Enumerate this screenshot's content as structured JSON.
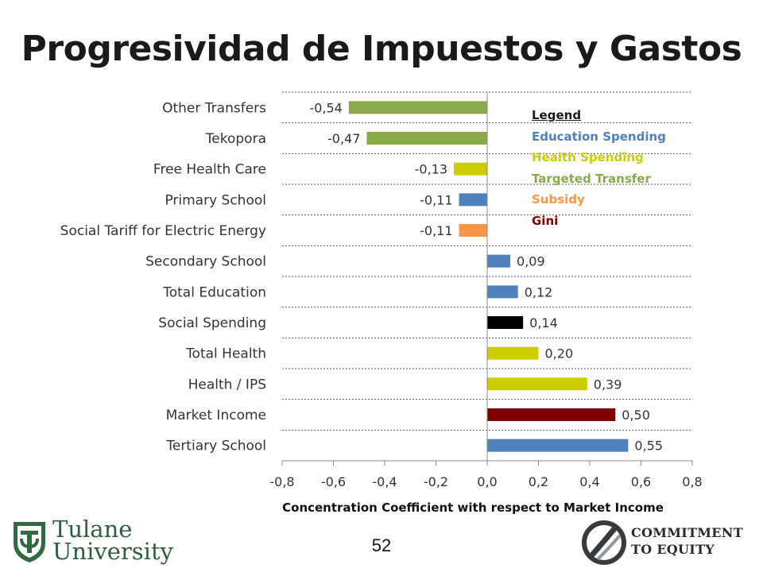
{
  "title": "Progresividad de Impuestos y Gastos",
  "page_number": "52",
  "legend": {
    "header": "Legend",
    "items": [
      {
        "label": "Education Spending",
        "color": "#4f81bd"
      },
      {
        "label": "Health Spending",
        "color": "#cccc00"
      },
      {
        "label": "Targeted Transfer",
        "color": "#8aaa4a"
      },
      {
        "label": "Subsidy",
        "color": "#f79646"
      },
      {
        "label": "Gini",
        "color": "#7f0000"
      }
    ]
  },
  "logos": {
    "left": {
      "line1": "Tulane",
      "line2": "University",
      "icon": "tulane-shield-icon"
    },
    "right": {
      "line1": "COMMITMENT",
      "line2": "TO EQUITY",
      "icon": "cte-circle-icon"
    }
  },
  "chart_data": {
    "type": "bar",
    "orientation": "horizontal",
    "xlabel": "Concentration Coefficient with respect to Market Income",
    "xlim": [
      -0.8,
      0.8
    ],
    "xticks": [
      "-0,8",
      "-0,6",
      "-0,4",
      "-0,2",
      "0,0",
      "0,2",
      "0,4",
      "0,6",
      "0,8"
    ],
    "grid": "horizontal dashed",
    "legend_position": "top-right",
    "categories": [
      "Other Transfers",
      "Tekopora",
      "Free Health Care",
      "Primary School",
      "Social Tariff for Electric Energy",
      "Secondary School",
      "Total Education",
      "Social Spending",
      "Total Health",
      "Health / IPS",
      "Market Income",
      "Tertiary School"
    ],
    "values": [
      -0.54,
      -0.47,
      -0.13,
      -0.11,
      -0.11,
      0.09,
      0.12,
      0.14,
      0.2,
      0.39,
      0.5,
      0.55
    ],
    "value_labels": [
      "-0,54",
      "-0,47",
      "-0,13",
      "-0,11",
      "-0,11",
      "0,09",
      "0,12",
      "0,14",
      "0,20",
      "0,39",
      "0,50",
      "0,55"
    ],
    "colors": [
      "#8aaa4a",
      "#8aaa4a",
      "#cccc00",
      "#4f81bd",
      "#f79646",
      "#4f81bd",
      "#4f81bd",
      "#000000",
      "#cccc00",
      "#cccc00",
      "#7f0000",
      "#4f81bd"
    ]
  }
}
